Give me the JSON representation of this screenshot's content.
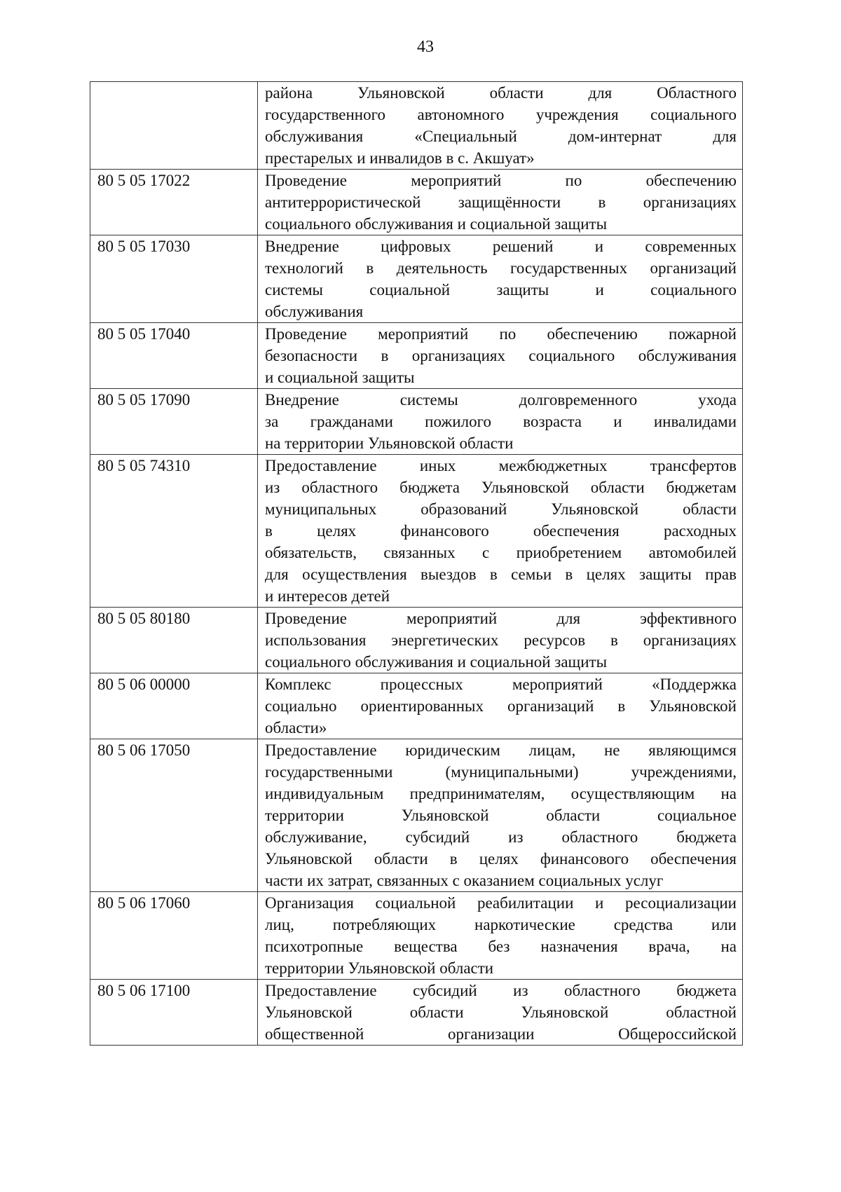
{
  "page_number": "43",
  "rows": [
    {
      "code": "",
      "lines": [
        "района Ульяновской области для Областного",
        "государственного автономного учреждения социального",
        "обслуживания «Специальный дом-интернат для",
        "престарелых и инвалидов в с. Акшуат»"
      ]
    },
    {
      "code": "80 5 05 17022",
      "lines": [
        "Проведение мероприятий по обеспечению",
        "антитеррористической защищённости в организациях",
        "социального обслуживания и социальной защиты"
      ]
    },
    {
      "code": "80 5 05 17030",
      "lines": [
        "Внедрение цифровых решений и современных",
        "технологий в деятельность государственных организаций",
        "системы социальной защиты и социального",
        "обслуживания"
      ]
    },
    {
      "code": "80 5 05 17040",
      "lines": [
        "Проведение мероприятий по обеспечению пожарной",
        "безопасности в организациях социального обслуживания",
        "и социальной защиты"
      ]
    },
    {
      "code": "80 5 05 17090",
      "lines": [
        "Внедрение системы долговременного ухода",
        "за гражданами пожилого возраста и инвалидами",
        "на территории Ульяновской области"
      ]
    },
    {
      "code": "80 5 05 74310",
      "lines": [
        "Предоставление иных межбюджетных трансфертов",
        "из областного бюджета Ульяновской области бюджетам",
        "муниципальных образований Ульяновской области",
        "в целях финансового обеспечения расходных",
        "обязательств, связанных с приобретением автомобилей",
        "для осуществления выездов в семьи в целях защиты прав",
        "и интересов детей"
      ]
    },
    {
      "code": "80 5 05 80180",
      "lines": [
        "Проведение мероприятий для эффективного",
        "использования энергетических ресурсов в организациях",
        "социального обслуживания и социальной защиты"
      ]
    },
    {
      "code": "80 5 06 00000",
      "lines": [
        "Комплекс процессных мероприятий «Поддержка",
        "социально ориентированных организаций в Ульяновской",
        "области»"
      ]
    },
    {
      "code": "80 5 06 17050",
      "lines": [
        "Предоставление юридическим лицам, не являющимся",
        "государственными (муниципальными) учреждениями,",
        "индивидуальным предпринимателям, осуществляющим на",
        "территории Ульяновской области социальное",
        "обслуживание, субсидий из областного бюджета",
        "Ульяновской области в целях финансового обеспечения",
        "части их затрат, связанных с оказанием социальных услуг"
      ]
    },
    {
      "code": "80 5 06 17060",
      "lines": [
        "Организация социальной реабилитации и ресоциализации",
        "лиц, потребляющих наркотические средства или",
        "психотропные вещества без назначения врача, на",
        "территории Ульяновской области"
      ]
    },
    {
      "code": "80 5 06 17100",
      "lines": [
        "Предоставление субсидий из областного бюджета",
        "Ульяновской области Ульяновской областной",
        "общественной организации Общероссийской"
      ]
    }
  ]
}
